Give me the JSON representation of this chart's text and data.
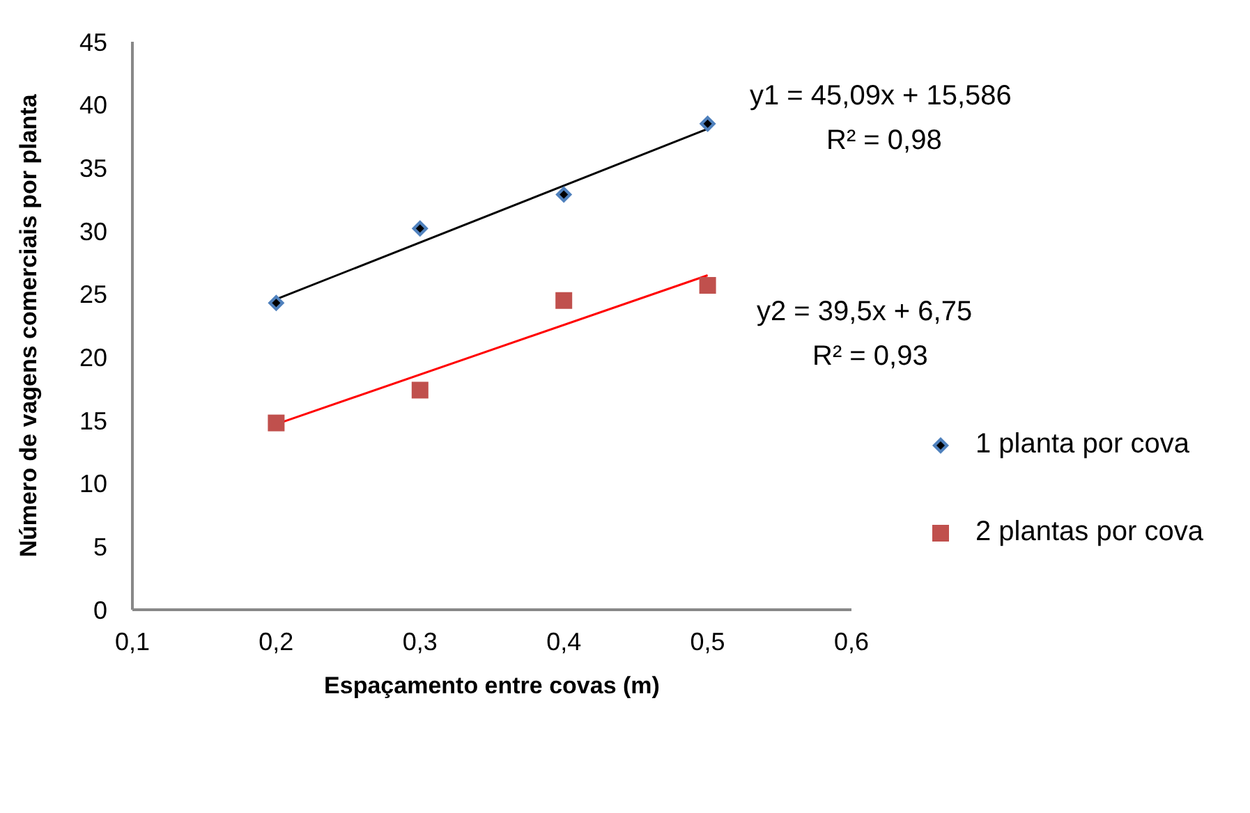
{
  "chart_data": {
    "type": "scatter",
    "xlabel": "Espaçamento entre covas (m)",
    "ylabel": "Número de vagens comerciais por planta",
    "xlim": [
      0.1,
      0.6
    ],
    "xticks": [
      {
        "value": 0.1,
        "label": "0,1"
      },
      {
        "value": 0.2,
        "label": "0,2"
      },
      {
        "value": 0.3,
        "label": "0,3"
      },
      {
        "value": 0.4,
        "label": "0,4"
      },
      {
        "value": 0.5,
        "label": "0,5"
      },
      {
        "value": 0.6,
        "label": "0,6"
      }
    ],
    "ylim": [
      0,
      45
    ],
    "yticks": [
      0,
      5,
      10,
      15,
      20,
      25,
      30,
      35,
      40,
      45
    ],
    "grid": false,
    "legend": "right",
    "series": [
      {
        "name": "1 planta por cova",
        "marker": "diamond",
        "color": "#4f81bd",
        "x": [
          0.2,
          0.3,
          0.4,
          0.5
        ],
        "values": [
          24.3,
          30.2,
          32.9,
          38.5
        ]
      },
      {
        "name": "2 plantas por cova",
        "marker": "square",
        "color": "#c0504d",
        "x": [
          0.2,
          0.3,
          0.4,
          0.5
        ],
        "values": [
          14.8,
          17.4,
          24.5,
          25.7
        ]
      },
      {
        "type": "line",
        "marker": "none",
        "line_style": "solid",
        "color": "#000000",
        "x": [
          0.2,
          0.5
        ],
        "values": [
          24.6,
          38.1
        ]
      },
      {
        "type": "line",
        "marker": "none",
        "line_style": "solid",
        "color": "#ff0000",
        "x": [
          0.2,
          0.5
        ],
        "values": [
          14.7,
          26.5
        ]
      }
    ],
    "annotations": [
      "y1 = 45,09x + 15,586",
      "R² = 0,98",
      "y2 = 39,5x + 6,75",
      "R² = 0,93"
    ]
  }
}
